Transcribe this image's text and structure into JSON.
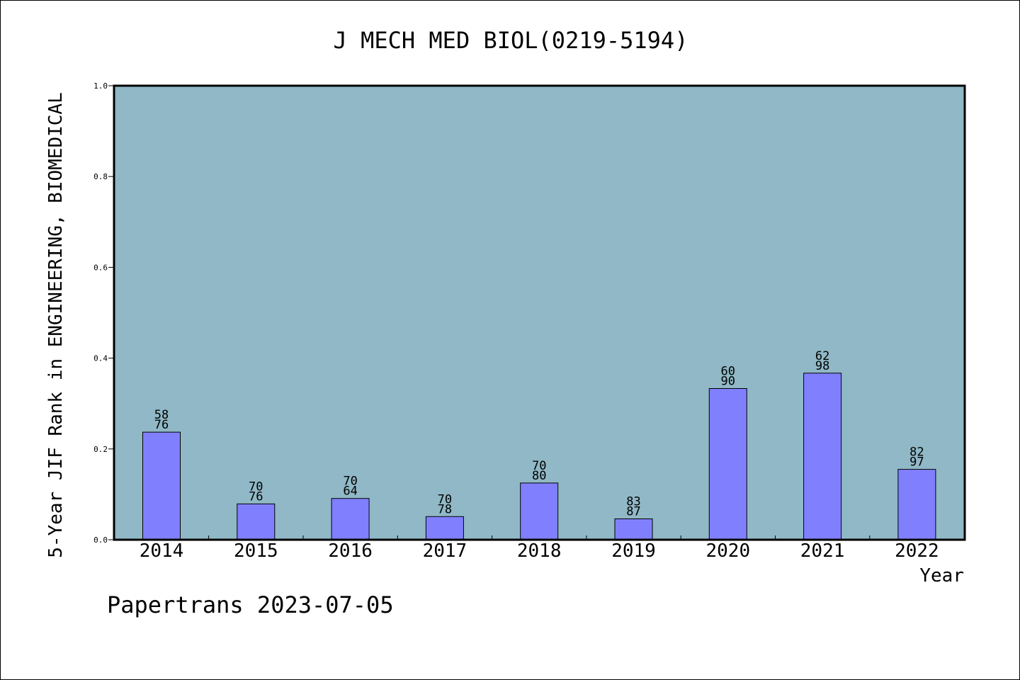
{
  "chart_data": {
    "type": "bar",
    "title": "J MECH MED BIOL(0219-5194)",
    "xlabel": "Year",
    "ylabel": "5-Year JIF Rank in ENGINEERING, BIOMEDICAL",
    "ylim": [
      0,
      1.0
    ],
    "yticks": [
      "0.0",
      "0.2",
      "0.4",
      "0.6",
      "0.8",
      "1.0"
    ],
    "grid": false,
    "categories": [
      "2014",
      "2015",
      "2016",
      "2017",
      "2018",
      "2019",
      "2020",
      "2021",
      "2022"
    ],
    "values": [
      0.237,
      0.079,
      0.091,
      0.051,
      0.125,
      0.046,
      0.333,
      0.367,
      0.155
    ],
    "labels_top": [
      "58",
      "70",
      "70",
      "70",
      "70",
      "83",
      "60",
      "62",
      "82"
    ],
    "labels_bottom": [
      "76",
      "76",
      "64",
      "78",
      "80",
      "87",
      "90",
      "98",
      "97"
    ],
    "colors": {
      "plot_background": "#90b8c6",
      "bar_fill": "#8080ff",
      "bar_stroke": "#000000"
    }
  },
  "footer": {
    "watermark": "Papertrans 2023-07-05"
  }
}
